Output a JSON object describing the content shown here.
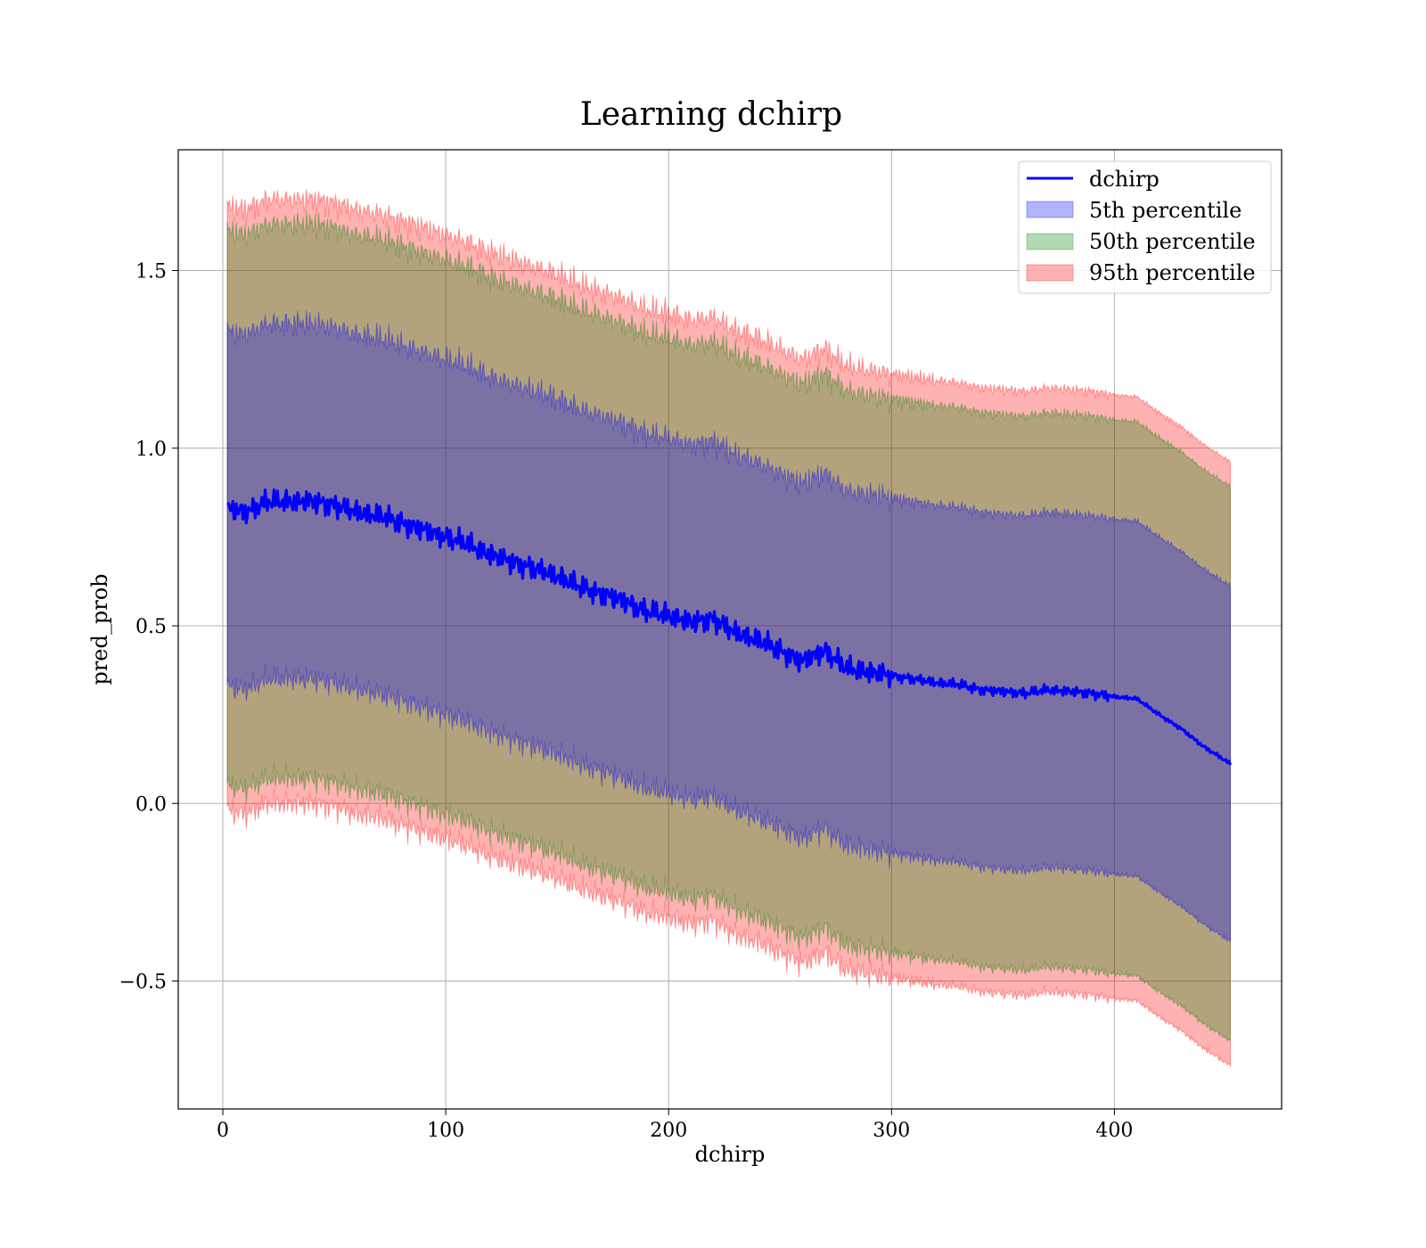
{
  "chart_data": {
    "type": "area",
    "title": "Learning dchirp",
    "xlabel": "dchirp",
    "ylabel": "pred_prob",
    "xlim": [
      -20,
      475
    ],
    "ylim": [
      -0.86,
      1.84
    ],
    "x_ticks": [
      0,
      100,
      200,
      300,
      400
    ],
    "x_tick_labels": [
      "0",
      "100",
      "200",
      "300",
      "400"
    ],
    "y_ticks": [
      -0.5,
      0.0,
      0.5,
      1.0,
      1.5
    ],
    "y_tick_labels": [
      "−0.5",
      "0.0",
      "0.5",
      "1.0",
      "1.5"
    ],
    "grid": true,
    "legend_position": "upper-right",
    "colors": {
      "line": "#0000ff",
      "band_5th": "#0000ff",
      "band_50th": "#008000",
      "band_95th": "#ff0000",
      "band_alpha": 0.3
    },
    "x": [
      2,
      10,
      20,
      30,
      40,
      50,
      60,
      70,
      80,
      90,
      100,
      110,
      120,
      130,
      140,
      150,
      160,
      170,
      180,
      190,
      200,
      210,
      220,
      230,
      240,
      250,
      260,
      270,
      280,
      290,
      300,
      310,
      320,
      330,
      340,
      350,
      360,
      370,
      380,
      390,
      400,
      410,
      420,
      430,
      440,
      450,
      452
    ],
    "center": [
      0.83,
      0.82,
      0.85,
      0.85,
      0.85,
      0.84,
      0.82,
      0.81,
      0.79,
      0.77,
      0.75,
      0.73,
      0.7,
      0.68,
      0.66,
      0.64,
      0.61,
      0.59,
      0.57,
      0.54,
      0.53,
      0.51,
      0.52,
      0.48,
      0.46,
      0.43,
      0.4,
      0.43,
      0.38,
      0.37,
      0.36,
      0.35,
      0.34,
      0.335,
      0.32,
      0.315,
      0.31,
      0.32,
      0.315,
      0.31,
      0.3,
      0.295,
      0.25,
      0.21,
      0.16,
      0.12,
      0.11
    ],
    "series": [
      {
        "name": "dchirp",
        "kind": "line",
        "half_width": 0
      },
      {
        "name": "5th percentile",
        "kind": "band",
        "half_width": 0.5
      },
      {
        "name": "50th percentile",
        "kind": "band",
        "half_width": 0.78
      },
      {
        "name": "95th percentile",
        "kind": "band",
        "half_width": 0.85
      }
    ]
  }
}
